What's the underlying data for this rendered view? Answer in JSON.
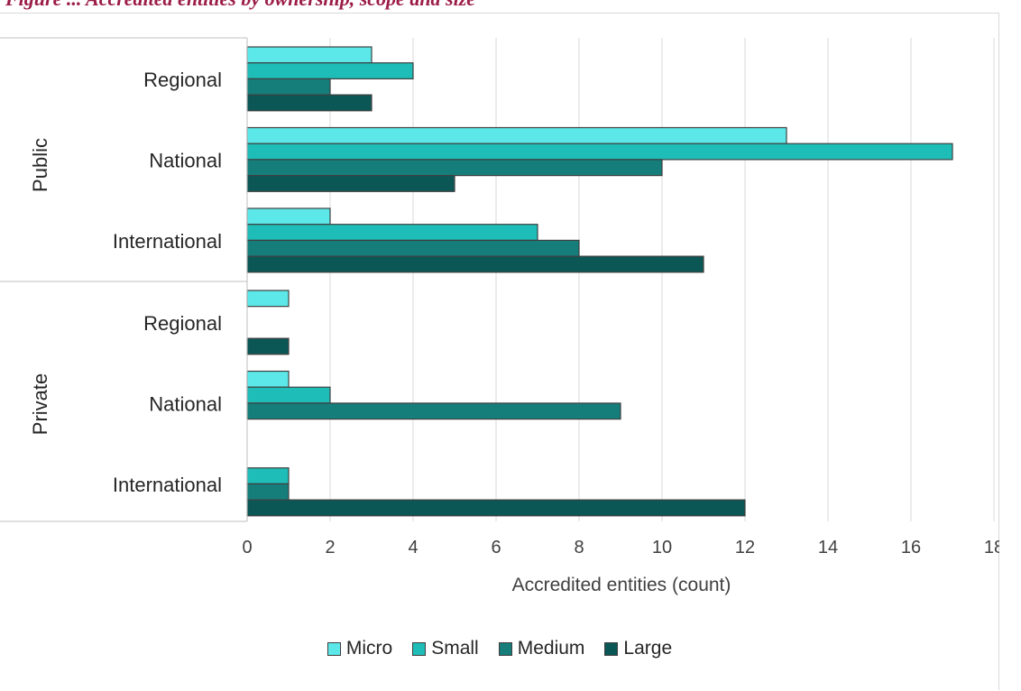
{
  "caption": "Figure ... Accredited entities by ownership, scope and size",
  "chart_data": {
    "type": "bar",
    "orientation": "horizontal",
    "xlabel": "Accredited entities (count)",
    "xlim": [
      0,
      18
    ],
    "xticks": [
      0,
      2,
      4,
      6,
      8,
      10,
      12,
      14,
      16,
      18
    ],
    "grid": true,
    "legend_position": "bottom",
    "groups": [
      {
        "name": "Public",
        "categories": [
          "Regional",
          "National",
          "International"
        ]
      },
      {
        "name": "Private",
        "categories": [
          "Regional",
          "National",
          "International"
        ]
      }
    ],
    "series": [
      {
        "name": "Micro",
        "color": "#5ce8e8",
        "values": [
          3,
          13,
          2,
          1,
          1,
          0
        ]
      },
      {
        "name": "Small",
        "color": "#1fbdb8",
        "values": [
          4,
          17,
          7,
          0,
          2,
          1
        ]
      },
      {
        "name": "Medium",
        "color": "#157d7a",
        "values": [
          2,
          10,
          8,
          0,
          9,
          1
        ]
      },
      {
        "name": "Large",
        "color": "#0b5756",
        "values": [
          3,
          5,
          11,
          1,
          0,
          12
        ]
      }
    ]
  }
}
